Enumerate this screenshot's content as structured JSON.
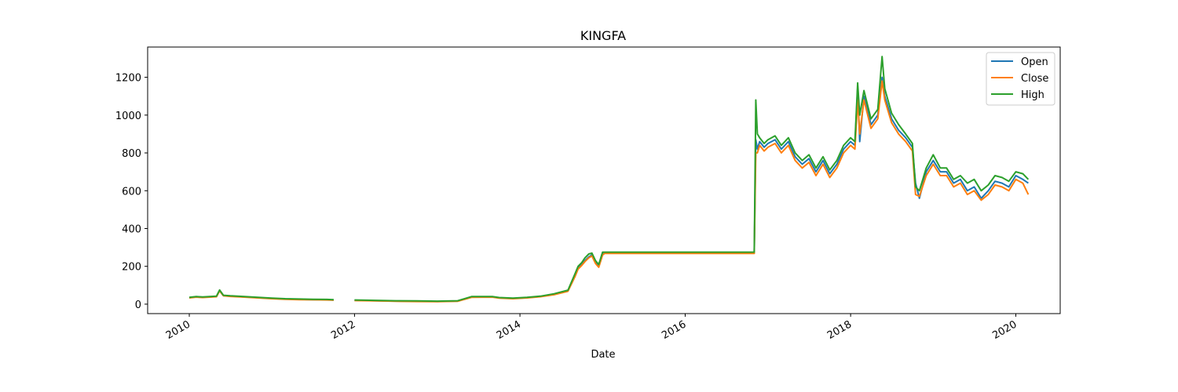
{
  "chart_data": {
    "type": "line",
    "title": "KINGFA",
    "xlabel": "Date",
    "ylabel": "",
    "xlim": [
      "2009-07-01",
      "2020-07-15"
    ],
    "ylim": [
      -50,
      1360
    ],
    "x_ticks": [
      "2010",
      "2012",
      "2014",
      "2016",
      "2018",
      "2020"
    ],
    "y_ticks": [
      0,
      200,
      400,
      600,
      800,
      1000,
      1200
    ],
    "grid": false,
    "legend_position": "top-right",
    "colors": {
      "Open": "#1f77b4",
      "Close": "#ff7f0e",
      "High": "#2ca02c"
    },
    "x": [
      "2010-01-01",
      "2010-02-01",
      "2010-03-01",
      "2010-04-01",
      "2010-05-01",
      "2010-05-15",
      "2010-06-01",
      "2010-07-01",
      "2010-09-01",
      "2010-11-01",
      "2011-01-01",
      "2011-03-01",
      "2011-05-01",
      "2011-07-01",
      "2011-09-01",
      "2011-10-01",
      "2011-11-01",
      "2012-01-01",
      "2012-04-01",
      "2012-07-01",
      "2012-10-01",
      "2013-01-01",
      "2013-04-01",
      "2013-06-01",
      "2013-09-01",
      "2013-10-01",
      "2013-12-01",
      "2014-02-01",
      "2014-04-01",
      "2014-06-01",
      "2014-08-01",
      "2014-09-01",
      "2014-09-15",
      "2014-10-01",
      "2014-10-15",
      "2014-11-01",
      "2014-11-15",
      "2014-12-01",
      "2014-12-15",
      "2015-01-01",
      "2015-01-10",
      "2015-02-01",
      "2015-06-01",
      "2016-01-01",
      "2016-06-01",
      "2016-10-01",
      "2016-11-01",
      "2016-11-08",
      "2016-11-15",
      "2016-11-25",
      "2016-12-15",
      "2017-01-01",
      "2017-02-01",
      "2017-03-01",
      "2017-04-01",
      "2017-05-01",
      "2017-06-01",
      "2017-07-01",
      "2017-08-01",
      "2017-09-01",
      "2017-10-01",
      "2017-11-01",
      "2017-12-01",
      "2018-01-01",
      "2018-01-20",
      "2018-02-01",
      "2018-02-10",
      "2018-03-01",
      "2018-04-01",
      "2018-05-01",
      "2018-05-20",
      "2018-06-01",
      "2018-07-01",
      "2018-08-01",
      "2018-09-01",
      "2018-10-01",
      "2018-10-15",
      "2018-11-01",
      "2018-12-01",
      "2019-01-01",
      "2019-02-01",
      "2019-03-01",
      "2019-04-01",
      "2019-05-01",
      "2019-06-01",
      "2019-07-01",
      "2019-08-01",
      "2019-09-01",
      "2019-10-01",
      "2019-11-01",
      "2019-12-01",
      "2020-01-01",
      "2020-02-01",
      "2020-02-25"
    ],
    "series": [
      {
        "name": "Open",
        "values": [
          34,
          38,
          36,
          38,
          40,
          72,
          45,
          42,
          38,
          34,
          30,
          27,
          25,
          24,
          23,
          22,
          null,
          20,
          18,
          16,
          15,
          14,
          16,
          38,
          38,
          33,
          30,
          34,
          40,
          52,
          70,
          150,
          190,
          210,
          230,
          250,
          260,
          220,
          200,
          265,
          270,
          270,
          270,
          270,
          270,
          270,
          270,
          870,
          820,
          860,
          830,
          850,
          870,
          820,
          860,
          780,
          740,
          770,
          700,
          760,
          690,
          740,
          820,
          860,
          840,
          1150,
          860,
          1100,
          950,
          1000,
          1200,
          1100,
          980,
          920,
          880,
          830,
          640,
          560,
          700,
          760,
          700,
          700,
          640,
          660,
          600,
          620,
          560,
          600,
          650,
          640,
          620,
          680,
          660,
          640
        ]
      },
      {
        "name": "Close",
        "values": [
          33,
          37,
          35,
          37,
          39,
          70,
          44,
          41,
          37,
          33,
          29,
          26,
          24,
          23,
          22,
          21,
          null,
          19,
          17,
          15,
          14,
          13,
          15,
          36,
          37,
          32,
          29,
          33,
          39,
          50,
          68,
          145,
          185,
          205,
          225,
          245,
          255,
          215,
          195,
          260,
          268,
          268,
          268,
          268,
          268,
          268,
          268,
          800,
          800,
          840,
          810,
          830,
          850,
          800,
          840,
          760,
          720,
          750,
          680,
          740,
          670,
          720,
          800,
          840,
          820,
          1080,
          900,
          1080,
          930,
          980,
          1180,
          1080,
          960,
          900,
          860,
          810,
          580,
          570,
          680,
          740,
          680,
          680,
          620,
          640,
          580,
          600,
          550,
          580,
          630,
          620,
          600,
          660,
          640,
          580
        ]
      },
      {
        "name": "High",
        "values": [
          36,
          40,
          38,
          40,
          42,
          75,
          47,
          44,
          40,
          36,
          32,
          29,
          27,
          26,
          25,
          24,
          null,
          22,
          20,
          18,
          17,
          16,
          18,
          40,
          40,
          35,
          32,
          36,
          42,
          55,
          74,
          160,
          200,
          220,
          245,
          265,
          270,
          230,
          210,
          275,
          275,
          275,
          275,
          275,
          275,
          275,
          275,
          1080,
          900,
          880,
          850,
          870,
          890,
          840,
          880,
          800,
          760,
          790,
          720,
          780,
          710,
          760,
          840,
          880,
          860,
          1170,
          1000,
          1130,
          980,
          1030,
          1310,
          1140,
          1010,
          950,
          900,
          850,
          620,
          600,
          720,
          790,
          720,
          720,
          660,
          680,
          640,
          660,
          600,
          630,
          680,
          670,
          650,
          700,
          690,
          660
        ]
      }
    ]
  }
}
